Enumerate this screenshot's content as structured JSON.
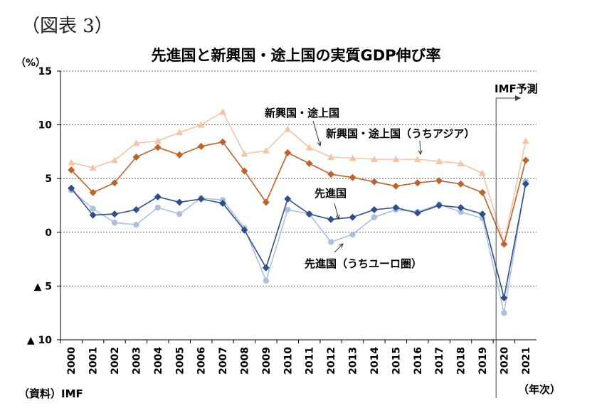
{
  "figure_label": "（図表 3）",
  "chart_data": {
    "type": "line",
    "title": "先進国と新興国・途上国の実質GDP伸び率",
    "ylabel": "（%）",
    "xlabel": "（年次）",
    "source": "（資料）IMF",
    "ylim": [
      -10,
      15
    ],
    "yticks": [
      {
        "value": 15,
        "label": "15"
      },
      {
        "value": 10,
        "label": "10"
      },
      {
        "value": 5,
        "label": "5"
      },
      {
        "value": 0,
        "label": "0"
      },
      {
        "value": -5,
        "label": "▲ 5"
      },
      {
        "value": -10,
        "label": "▲ 10"
      }
    ],
    "grid": true,
    "categories": [
      "2000",
      "2001",
      "2002",
      "2003",
      "2004",
      "2005",
      "2006",
      "2007",
      "2008",
      "2009",
      "2010",
      "2011",
      "2012",
      "2013",
      "2014",
      "2015",
      "2016",
      "2017",
      "2018",
      "2019",
      "2020",
      "2021"
    ],
    "series": [
      {
        "name": "新興国・途上国",
        "color": "#c0622b",
        "marker": "diamond",
        "values": [
          5.8,
          3.7,
          4.6,
          7.0,
          7.9,
          7.2,
          8.0,
          8.4,
          5.7,
          2.8,
          7.4,
          6.4,
          5.4,
          5.1,
          4.7,
          4.3,
          4.6,
          4.8,
          4.5,
          3.7,
          -1.1,
          6.7
        ]
      },
      {
        "name": "新興国・途上国（うちアジア）",
        "color": "#f5c4a4",
        "marker": "triangle",
        "values": [
          6.5,
          6.0,
          6.7,
          8.3,
          8.5,
          9.3,
          10.0,
          11.2,
          7.3,
          7.6,
          9.6,
          7.9,
          7.0,
          6.9,
          6.8,
          6.8,
          6.8,
          6.6,
          6.4,
          5.5,
          -1.0,
          8.5
        ]
      },
      {
        "name": "先進国",
        "color": "#2e4e8c",
        "marker": "diamond",
        "values": [
          4.1,
          1.6,
          1.7,
          2.1,
          3.3,
          2.8,
          3.1,
          2.7,
          0.2,
          -3.3,
          3.1,
          1.7,
          1.2,
          1.4,
          2.1,
          2.3,
          1.8,
          2.5,
          2.3,
          1.7,
          -6.1,
          4.5
        ]
      },
      {
        "name": "先進国（うちユーロ圏）",
        "color": "#a9c1e0",
        "marker": "circle",
        "values": [
          3.9,
          2.2,
          0.9,
          0.7,
          2.3,
          1.7,
          3.2,
          3.0,
          0.4,
          -4.5,
          2.1,
          1.7,
          -0.9,
          -0.2,
          1.4,
          2.1,
          1.9,
          2.6,
          1.9,
          1.3,
          -7.5,
          4.7
        ]
      }
    ],
    "annotations": {
      "forecast": "IMF予測"
    }
  }
}
